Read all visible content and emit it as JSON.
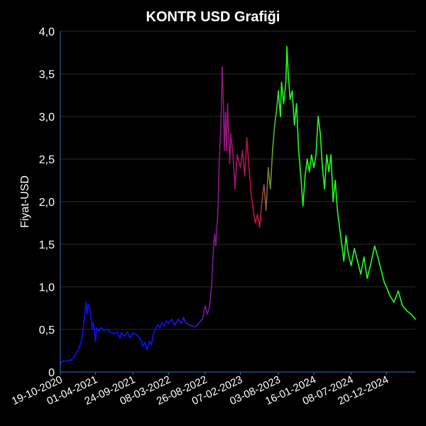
{
  "chart_data": {
    "type": "line",
    "title": "KONTR USD Grafiği",
    "xlabel": "",
    "ylabel": "Fiyat-USD",
    "ylim": [
      0,
      4.0
    ],
    "y_ticks": [
      "0",
      "0,5",
      "1,0",
      "1,5",
      "2,0",
      "2,5",
      "3,0",
      "3,5",
      "4,0"
    ],
    "x_ticks": [
      "19-10-2020",
      "01-04-2021",
      "24-09-2021",
      "08-03-2022",
      "26-08-2022",
      "07-02-2023",
      "03-08-2023",
      "16-01-2024",
      "08-07-2024",
      "20-12-2024"
    ],
    "grid": true,
    "legend": "none",
    "x_format": "date",
    "series": [
      {
        "points": [
          [
            "2020-10-19",
            0.08
          ],
          [
            "2020-10-24",
            0.12
          ],
          [
            "2020-11-03",
            0.13
          ],
          [
            "2020-11-18",
            0.13
          ],
          [
            "2020-12-08",
            0.14
          ],
          [
            "2020-12-23",
            0.18
          ],
          [
            "2021-01-07",
            0.25
          ],
          [
            "2021-01-17",
            0.3
          ],
          [
            "2021-01-27",
            0.4
          ],
          [
            "2021-02-06",
            0.58
          ],
          [
            "2021-02-11",
            0.7
          ],
          [
            "2021-02-16",
            0.82
          ],
          [
            "2021-02-21",
            0.68
          ],
          [
            "2021-02-26",
            0.8
          ],
          [
            "2021-03-08",
            0.72
          ],
          [
            "2021-03-13",
            0.6
          ],
          [
            "2021-03-18",
            0.5
          ],
          [
            "2021-03-23",
            0.58
          ],
          [
            "2021-04-01",
            0.36
          ],
          [
            "2021-04-06",
            0.52
          ],
          [
            "2021-04-16",
            0.48
          ],
          [
            "2021-04-26",
            0.52
          ],
          [
            "2021-05-11",
            0.49
          ],
          [
            "2021-05-26",
            0.5
          ],
          [
            "2021-06-10",
            0.47
          ],
          [
            "2021-06-25",
            0.45
          ],
          [
            "2021-07-10",
            0.47
          ],
          [
            "2021-07-25",
            0.4
          ],
          [
            "2021-07-30",
            0.46
          ],
          [
            "2021-08-14",
            0.42
          ],
          [
            "2021-08-29",
            0.47
          ],
          [
            "2021-09-08",
            0.4
          ],
          [
            "2021-09-24",
            0.46
          ],
          [
            "2021-10-14",
            0.43
          ],
          [
            "2021-10-29",
            0.38
          ],
          [
            "2021-11-08",
            0.3
          ],
          [
            "2021-11-18",
            0.35
          ],
          [
            "2021-11-28",
            0.26
          ],
          [
            "2021-12-08",
            0.36
          ],
          [
            "2021-12-18",
            0.32
          ],
          [
            "2021-12-28",
            0.45
          ],
          [
            "2022-01-07",
            0.5
          ],
          [
            "2022-01-17",
            0.56
          ],
          [
            "2022-01-27",
            0.52
          ],
          [
            "2022-02-06",
            0.58
          ],
          [
            "2022-02-16",
            0.54
          ],
          [
            "2022-02-26",
            0.6
          ],
          [
            "2022-03-08",
            0.57
          ],
          [
            "2022-03-23",
            0.62
          ],
          [
            "2022-04-07",
            0.55
          ],
          [
            "2022-04-22",
            0.62
          ],
          [
            "2022-05-07",
            0.57
          ],
          [
            "2022-05-17",
            0.64
          ],
          [
            "2022-05-27",
            0.58
          ],
          [
            "2022-06-16",
            0.55
          ],
          [
            "2022-07-11",
            0.53
          ],
          [
            "2022-07-31",
            0.58
          ],
          [
            "2022-08-15",
            0.63
          ],
          [
            "2022-08-26",
            0.78
          ],
          [
            "2022-09-05",
            0.68
          ],
          [
            "2022-09-15",
            0.75
          ],
          [
            "2022-09-25",
            1.0
          ],
          [
            "2022-09-30",
            1.25
          ],
          [
            "2022-10-05",
            1.5
          ],
          [
            "2022-10-10",
            1.62
          ],
          [
            "2022-10-15",
            1.48
          ],
          [
            "2022-10-25",
            1.9
          ],
          [
            "2022-10-30",
            2.4
          ],
          [
            "2022-11-09",
            3.0
          ],
          [
            "2022-11-14",
            3.58
          ],
          [
            "2022-11-19",
            3.2
          ],
          [
            "2022-11-24",
            2.6
          ],
          [
            "2022-11-29",
            3.05
          ],
          [
            "2022-12-04",
            2.6
          ],
          [
            "2022-12-09",
            3.15
          ],
          [
            "2022-12-19",
            2.45
          ],
          [
            "2022-12-24",
            2.8
          ],
          [
            "2023-01-03",
            2.55
          ],
          [
            "2023-01-13",
            2.15
          ],
          [
            "2023-01-23",
            2.55
          ],
          [
            "2023-02-07",
            2.4
          ],
          [
            "2023-02-17",
            2.6
          ],
          [
            "2023-02-27",
            2.3
          ],
          [
            "2023-03-09",
            2.75
          ],
          [
            "2023-03-19",
            2.4
          ],
          [
            "2023-03-29",
            2.1
          ],
          [
            "2023-04-08",
            1.9
          ],
          [
            "2023-04-18",
            1.75
          ],
          [
            "2023-04-28",
            1.85
          ],
          [
            "2023-05-08",
            1.7
          ],
          [
            "2023-05-18",
            2.0
          ],
          [
            "2023-05-28",
            2.2
          ],
          [
            "2023-06-07",
            1.9
          ],
          [
            "2023-06-17",
            2.4
          ],
          [
            "2023-06-27",
            2.15
          ],
          [
            "2023-07-07",
            2.6
          ],
          [
            "2023-07-17",
            2.9
          ],
          [
            "2023-07-27",
            3.1
          ],
          [
            "2023-08-03",
            3.3
          ],
          [
            "2023-08-13",
            3.0
          ],
          [
            "2023-08-18",
            3.4
          ],
          [
            "2023-08-28",
            3.15
          ],
          [
            "2023-09-07",
            3.4
          ],
          [
            "2023-09-12",
            3.82
          ],
          [
            "2023-09-17",
            3.55
          ],
          [
            "2023-09-27",
            3.2
          ],
          [
            "2023-10-07",
            3.3
          ],
          [
            "2023-10-17",
            2.9
          ],
          [
            "2023-10-27",
            3.15
          ],
          [
            "2023-11-06",
            2.6
          ],
          [
            "2023-11-16",
            2.3
          ],
          [
            "2023-11-26",
            1.95
          ],
          [
            "2023-12-06",
            2.3
          ],
          [
            "2023-12-16",
            2.5
          ],
          [
            "2023-12-26",
            2.35
          ],
          [
            "2024-01-05",
            2.55
          ],
          [
            "2024-01-16",
            2.4
          ],
          [
            "2024-01-26",
            2.55
          ],
          [
            "2024-02-05",
            3.0
          ],
          [
            "2024-02-15",
            2.8
          ],
          [
            "2024-02-25",
            2.4
          ],
          [
            "2024-03-06",
            2.15
          ],
          [
            "2024-03-16",
            2.55
          ],
          [
            "2024-03-26",
            2.35
          ],
          [
            "2024-04-05",
            2.55
          ],
          [
            "2024-04-15",
            2.0
          ],
          [
            "2024-04-25",
            2.25
          ],
          [
            "2024-05-05",
            1.9
          ],
          [
            "2024-05-15",
            1.7
          ],
          [
            "2024-05-25",
            1.5
          ],
          [
            "2024-06-04",
            1.3
          ],
          [
            "2024-06-14",
            1.6
          ],
          [
            "2024-06-24",
            1.4
          ],
          [
            "2024-07-08",
            1.25
          ],
          [
            "2024-07-23",
            1.45
          ],
          [
            "2024-08-07",
            1.3
          ],
          [
            "2024-08-22",
            1.15
          ],
          [
            "2024-09-06",
            1.35
          ],
          [
            "2024-09-21",
            1.1
          ],
          [
            "2024-10-06",
            1.25
          ],
          [
            "2024-10-26",
            1.48
          ],
          [
            "2024-11-10",
            1.35
          ],
          [
            "2024-11-25",
            1.2
          ],
          [
            "2024-12-10",
            1.05
          ],
          [
            "2024-12-20",
            1.0
          ],
          [
            "2025-01-04",
            0.9
          ],
          [
            "2025-01-24",
            0.82
          ],
          [
            "2025-02-13",
            0.95
          ],
          [
            "2025-03-05",
            0.78
          ],
          [
            "2025-03-25",
            0.72
          ],
          [
            "2025-04-14",
            0.68
          ],
          [
            "2025-05-04",
            0.62
          ]
        ],
        "colors": [
          "#1010ff",
          "#7a1a9a",
          "#c8103c",
          "#22ff22"
        ]
      }
    ]
  }
}
